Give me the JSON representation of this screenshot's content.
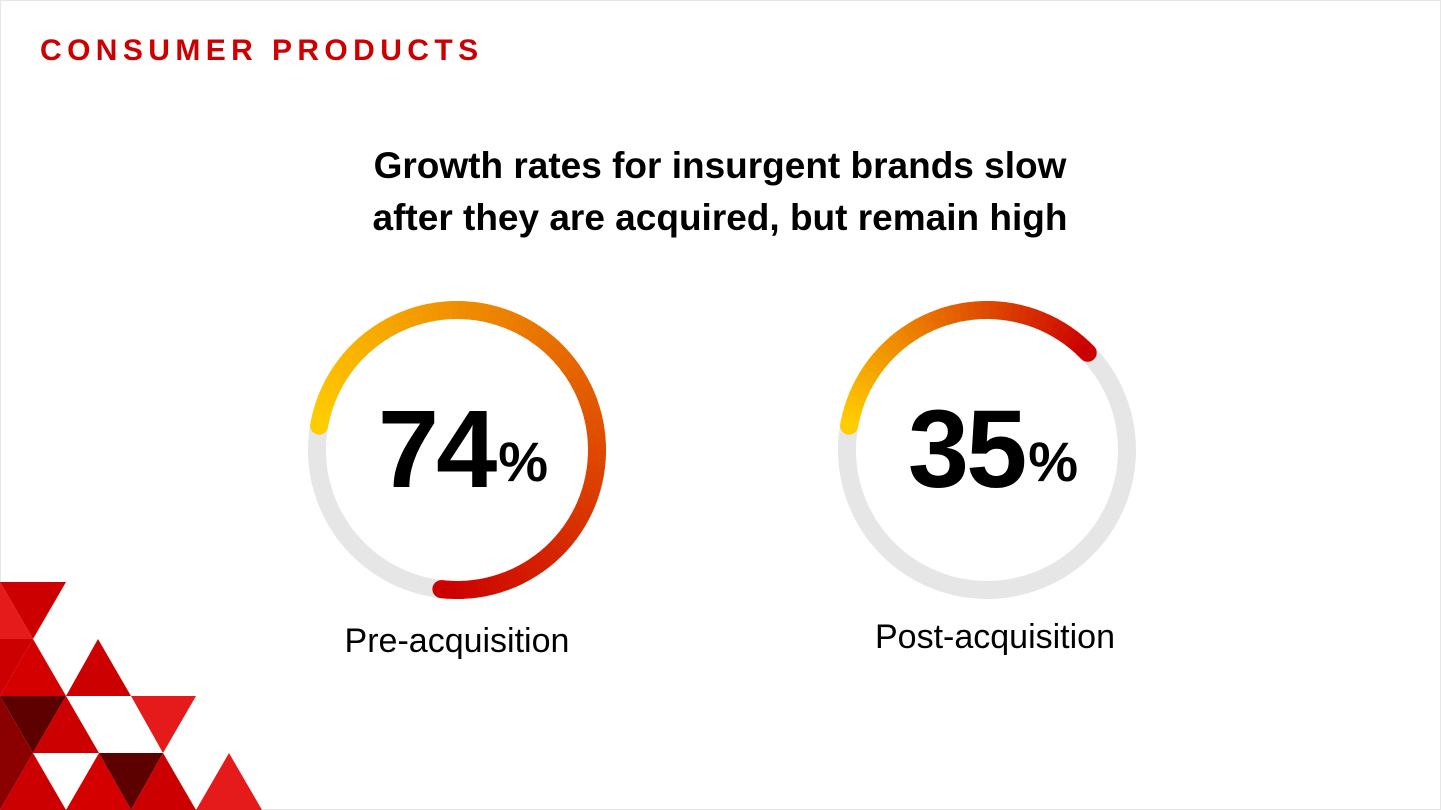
{
  "header": {
    "category": "CONSUMER PRODUCTS"
  },
  "chart_data": {
    "type": "gauge",
    "title": "Growth rates for insurgent brands slow after they are acquired, but remain high",
    "title_lines": [
      "Growth rates for insurgent brands slow",
      "after they are acquired, but remain high"
    ],
    "unit": "%",
    "max": 100,
    "items": [
      {
        "label": "Pre-acquisition",
        "value": 74,
        "value_text": "74"
      },
      {
        "label": "Post-acquisition",
        "value": 35,
        "value_text": "35"
      }
    ],
    "colors": {
      "track": "#e6e6e6",
      "gradient_start": "#ffcc00",
      "gradient_end": "#cc0000"
    }
  },
  "decoration": {
    "accent_colors": [
      "#cc0000",
      "#8b0000",
      "#5c0000"
    ]
  }
}
